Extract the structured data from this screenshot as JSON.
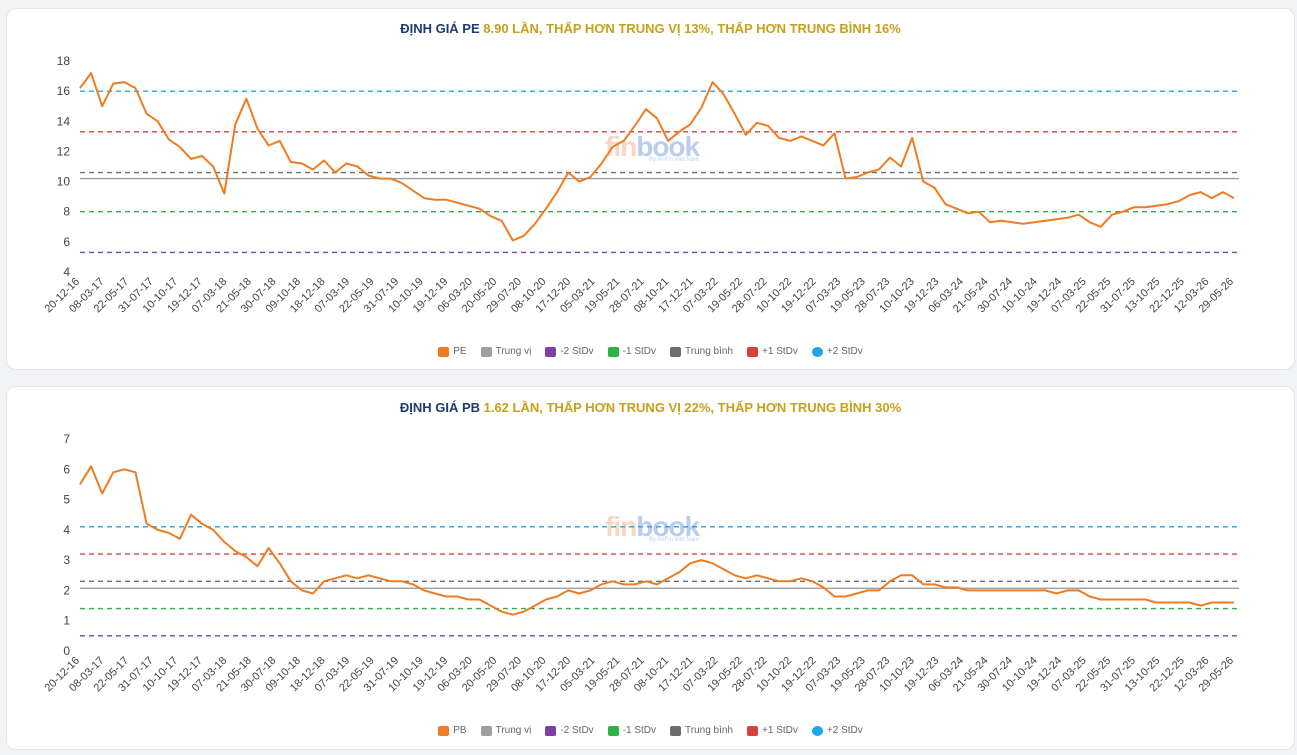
{
  "watermark": {
    "text_a": "fin",
    "text_b": "book",
    "sub": "By AnFin Viet Nam"
  },
  "x_labels": [
    "20-12-16",
    "08-03-17",
    "22-05-17",
    "31-07-17",
    "10-10-17",
    "19-12-17",
    "07-03-18",
    "21-05-18",
    "30-07-18",
    "09-10-18",
    "18-12-18",
    "07-03-19",
    "22-05-19",
    "31-07-19",
    "10-10-19",
    "19-12-19",
    "06-03-20",
    "20-05-20",
    "29-07-20",
    "08-10-20",
    "17-12-20",
    "05-03-21",
    "19-05-21",
    "28-07-21",
    "08-10-21",
    "17-12-21",
    "07-03-22",
    "19-05-22",
    "28-07-22",
    "10-10-22",
    "19-12-22",
    "07-03-23",
    "19-05-23",
    "28-07-23",
    "10-10-23",
    "19-12-23",
    "06-03-24",
    "21-05-24",
    "30-07-24",
    "10-10-24",
    "19-12-24",
    "07-03-25",
    "22-05-25",
    "31-07-25",
    "13-10-25",
    "22-12-25",
    "12-03-26",
    "29-05-26"
  ],
  "legend_labels": {
    "pe": "PE",
    "pb": "PB",
    "median": "Trung vị",
    "m2": "-2 StDv",
    "m1": "-1 StDv",
    "mean": "Trung bình",
    "p1": "+1 StDv",
    "p2": "+2 StDv"
  },
  "colors": {
    "series": "#f07c22",
    "median": "#9e9e9e",
    "m2": "#7b3fa6",
    "m1": "#2fb14a",
    "mean": "#6d6d6d",
    "p1": "#d9403a",
    "p2": "#1ea5e6"
  },
  "pe": {
    "title_name": "ĐỊNH GIÁ PE",
    "title_rest": " 8.90 LẦN, THẤP HƠN TRUNG VỊ 13%, THẤP HƠN TRUNG BÌNH 16%"
  },
  "pb": {
    "title_name": "ĐỊNH GIÁ PB",
    "title_rest": " 1.62 LẦN, THẤP HƠN TRUNG VỊ 22%, THẤP HƠN TRUNG BÌNH 30%"
  },
  "chart_data": [
    {
      "type": "line",
      "name": "PE",
      "title": "ĐỊNH GIÁ PE 8.90 LẦN, THẤP HƠN TRUNG VỊ 13%, THẤP HƠN TRUNG BÌNH 16%",
      "ylim": [
        4,
        18
      ],
      "yticks": [
        4,
        6,
        8,
        10,
        12,
        14,
        16,
        18
      ],
      "grid": false,
      "legend": "bottom",
      "lines": {
        "median": 10.2,
        "mean": 10.6,
        "m1": 8.0,
        "m2": 5.3,
        "p1": 13.3,
        "p2": 16.0
      },
      "values": [
        16.2,
        17.2,
        15.0,
        16.5,
        16.6,
        16.2,
        14.5,
        14.0,
        12.8,
        12.3,
        11.5,
        11.7,
        11.0,
        9.2,
        13.8,
        15.5,
        13.5,
        12.4,
        12.7,
        11.3,
        11.2,
        10.8,
        11.4,
        10.6,
        11.2,
        11.0,
        10.4,
        10.2,
        10.2,
        9.9,
        9.4,
        8.9,
        8.8,
        8.8,
        8.6,
        8.4,
        8.2,
        7.7,
        7.4,
        6.1,
        6.4,
        7.2,
        8.2,
        9.3,
        10.6,
        10.0,
        10.3,
        11.2,
        12.3,
        12.7,
        13.7,
        14.8,
        14.2,
        12.7,
        13.3,
        13.8,
        14.9,
        16.6,
        15.8,
        14.5,
        13.1,
        13.9,
        13.7,
        12.9,
        12.7,
        13.0,
        12.7,
        12.4,
        13.2,
        10.2,
        10.3,
        10.6,
        10.8,
        11.6,
        11.0,
        12.9,
        10.0,
        9.6,
        8.5,
        8.2,
        7.9,
        8.0,
        7.3,
        7.4,
        7.3,
        7.2,
        7.3,
        7.4,
        7.5,
        7.6,
        7.8,
        7.3,
        7.0,
        7.8,
        8.0,
        8.3,
        8.3,
        8.4,
        8.5,
        8.7,
        9.1,
        9.3,
        8.9,
        9.3,
        8.9
      ]
    },
    {
      "type": "line",
      "name": "PB",
      "title": "ĐỊNH GIÁ PB 1.62 LẦN, THẤP HƠN TRUNG VỊ 22%, THẤP HƠN TRUNG BÌNH 30%",
      "ylim": [
        0,
        7
      ],
      "yticks": [
        0,
        1,
        2,
        3,
        4,
        5,
        6,
        7
      ],
      "grid": false,
      "legend": "bottom",
      "lines": {
        "median": 2.07,
        "mean": 2.3,
        "m1": 1.4,
        "m2": 0.5,
        "p1": 3.2,
        "p2": 4.1
      },
      "values": [
        5.5,
        6.1,
        5.2,
        5.9,
        6.0,
        5.9,
        4.2,
        4.0,
        3.9,
        3.7,
        4.5,
        4.2,
        4.0,
        3.6,
        3.3,
        3.1,
        2.8,
        3.4,
        2.9,
        2.3,
        2.0,
        1.9,
        2.3,
        2.4,
        2.5,
        2.4,
        2.5,
        2.4,
        2.3,
        2.3,
        2.2,
        2.0,
        1.9,
        1.8,
        1.8,
        1.7,
        1.7,
        1.5,
        1.3,
        1.2,
        1.3,
        1.5,
        1.7,
        1.8,
        2.0,
        1.9,
        2.0,
        2.2,
        2.3,
        2.2,
        2.2,
        2.3,
        2.2,
        2.4,
        2.6,
        2.9,
        3.0,
        2.9,
        2.7,
        2.5,
        2.4,
        2.5,
        2.4,
        2.3,
        2.3,
        2.4,
        2.3,
        2.1,
        1.8,
        1.8,
        1.9,
        2.0,
        2.0,
        2.3,
        2.5,
        2.5,
        2.2,
        2.2,
        2.1,
        2.1,
        2.0,
        2.0,
        2.0,
        2.0,
        2.0,
        2.0,
        2.0,
        2.0,
        1.9,
        2.0,
        2.0,
        1.8,
        1.7,
        1.7,
        1.7,
        1.7,
        1.7,
        1.6,
        1.6,
        1.6,
        1.6,
        1.5,
        1.6,
        1.6,
        1.6
      ]
    }
  ]
}
